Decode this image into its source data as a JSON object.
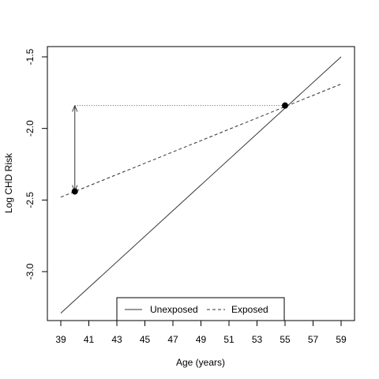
{
  "chart_data": {
    "type": "line",
    "xlabel": "Age (years)",
    "ylabel": "Log CHD Risk",
    "xlim": [
      39,
      59
    ],
    "ylim": [
      -3.35,
      -1.45
    ],
    "x_ticks": [
      39,
      41,
      43,
      45,
      47,
      49,
      51,
      53,
      55,
      57,
      59
    ],
    "y_ticks": [
      -3.0,
      -2.5,
      -2.0,
      -1.5
    ],
    "y_tick_labels": [
      "-3.0",
      "-2.5",
      "-2.0",
      "-1.5"
    ],
    "series": [
      {
        "name": "Unexposed",
        "style": "solid",
        "color": "#333333",
        "x": [
          39,
          59
        ],
        "y": [
          -3.29,
          -1.5
        ]
      },
      {
        "name": "Exposed",
        "style": "dashed",
        "color": "#333333",
        "x": [
          39,
          59
        ],
        "y": [
          -2.48,
          -1.69
        ]
      }
    ],
    "points": [
      {
        "x": 40,
        "y": -2.44
      },
      {
        "x": 55,
        "y": -1.84
      }
    ],
    "annotations": [
      {
        "type": "dotted-line",
        "from": {
          "x": 40,
          "y": -1.84
        },
        "to": {
          "x": 55,
          "y": -1.84
        }
      },
      {
        "type": "double-arrow",
        "from": {
          "x": 40,
          "y": -1.84
        },
        "to": {
          "x": 40,
          "y": -2.44
        }
      }
    ],
    "legend": {
      "position": "bottom-center",
      "entries": [
        "Unexposed",
        "Exposed"
      ]
    },
    "grid": false
  }
}
